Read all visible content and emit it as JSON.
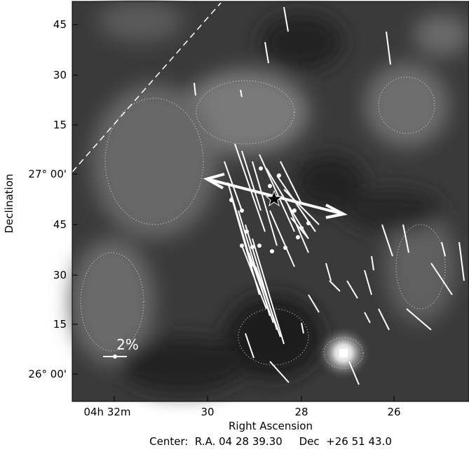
{
  "figure": {
    "y_label": "Declination",
    "x_label": "Right Ascension",
    "y_ticks": [
      "45",
      "30",
      "15",
      "27° 00'",
      "45",
      "30",
      "15",
      "26° 00'"
    ],
    "x_ticks": [
      "04h 32m",
      "30",
      "28",
      "26"
    ],
    "scale_label": "2%",
    "center": "Center:  R.A. 04 28 39.30     Dec  +26 51 43.0"
  }
}
